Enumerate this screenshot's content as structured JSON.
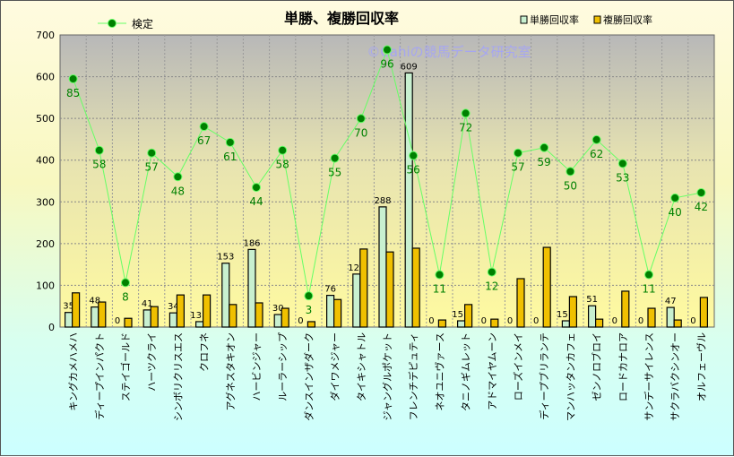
{
  "chart_data": {
    "type": "bar",
    "title": "単勝、複勝回収率",
    "watermark": "©Cahiの競馬データ研究室",
    "ylim": [
      0,
      700
    ],
    "yticks": [
      0,
      100,
      200,
      300,
      400,
      500,
      600,
      700
    ],
    "y2lim": [
      -8.8,
      101.6
    ],
    "grid": true,
    "legend_position": "top",
    "categories": [
      "キングカメハメハ",
      "ディープインパクト",
      "ステイゴールド",
      "ハーツクライ",
      "シンボリクリスエス",
      "クロフネ",
      "アグネスタキオン",
      "ハービンジャー",
      "ルーラーシップ",
      "ダンスインザダーク",
      "ダイワメジャー",
      "タイキシャトル",
      "ジャングルポケット",
      "フレンチデピュティ",
      "ネオユニヴァース",
      "タニノギムレット",
      "アドマイヤムーン",
      "ローズインメイ",
      "ディープブリランテ",
      "マンハッタンカフェ",
      "ゼンノロブロイ",
      "ロードカナロア",
      "サンデーサイレンス",
      "サクラバクシンオー",
      "オルフェーヴル"
    ],
    "series": [
      {
        "name": "単勝回収率",
        "type": "bar",
        "color": "#c8f0d0",
        "labels": true,
        "values": [
          35,
          48,
          0,
          41,
          34,
          13,
          153,
          186,
          30,
          0,
          76,
          127,
          288,
          609,
          0,
          15,
          0,
          0,
          0,
          15,
          51,
          0,
          0,
          47,
          0
        ]
      },
      {
        "name": "複勝回収率",
        "type": "bar",
        "color": "#f0c000",
        "labels": false,
        "values": [
          82,
          60,
          21,
          49,
          77,
          77,
          54,
          58,
          45,
          13,
          66,
          187,
          180,
          189,
          17,
          54,
          19,
          116,
          191,
          73,
          19,
          86,
          45,
          17,
          71
        ]
      },
      {
        "name": "検定",
        "type": "line",
        "axis": "secondary",
        "color": "#008000",
        "labels": true,
        "values": [
          85,
          58,
          8,
          57,
          48,
          67,
          61,
          44,
          58,
          3,
          55,
          70,
          96,
          56,
          11,
          72,
          12,
          57,
          59,
          50,
          62,
          53,
          11,
          40,
          42
        ]
      }
    ]
  }
}
